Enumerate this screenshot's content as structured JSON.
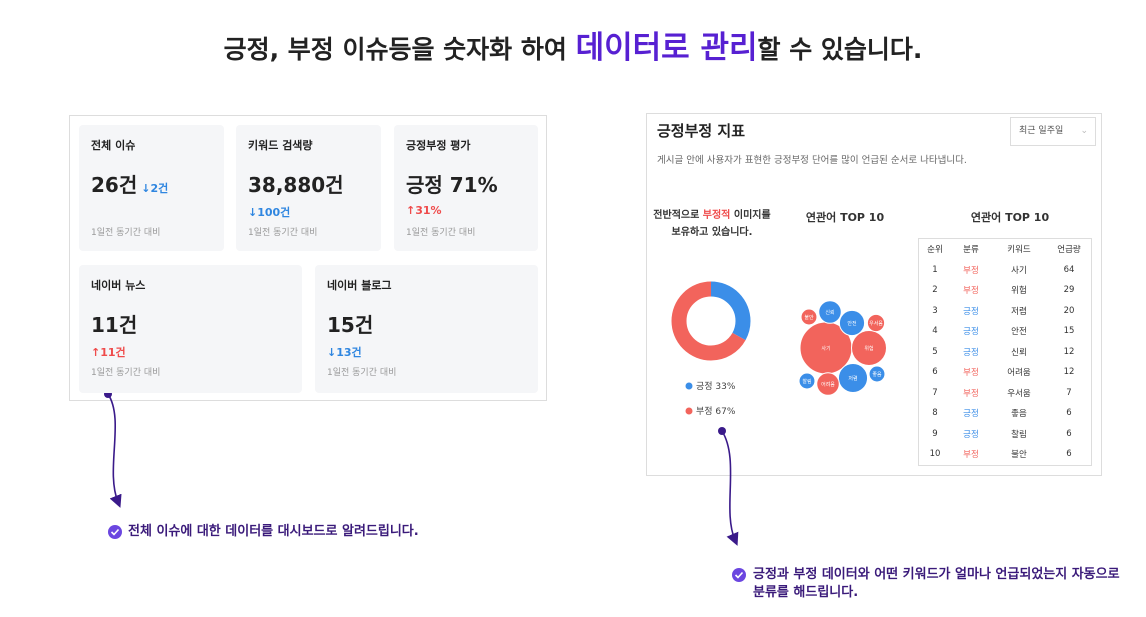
{
  "header": {
    "title_before": "긍정, 부정 이슈등을 숫자화 하여 ",
    "title_highlight": "데이터로 관리",
    "title_after": "할 수 있습니다."
  },
  "dashboard": {
    "cards": [
      {
        "label": "전체 이슈",
        "value": "26건",
        "change": "↓2건",
        "change_color": "#2f86e0",
        "note": "1일전 동기간 대비"
      },
      {
        "label": "키워드 검색량",
        "value": "38,880건",
        "change": "↓100건",
        "change_color": "#2f86e0",
        "note": "1일전 동기간 대비"
      },
      {
        "label": "긍정부정 평가",
        "value": "긍정 71%",
        "change": "↑31%",
        "change_color": "#ef4b4b",
        "note": "1일전 동기간 대비"
      },
      {
        "label": "네이버 뉴스",
        "value": "11건",
        "change": "↑11건",
        "change_color": "#ef4b4b",
        "note": "1일전 동기간 대비"
      },
      {
        "label": "네이버 블로그",
        "value": "15건",
        "change": "↓13건",
        "change_color": "#2f86e0",
        "note": "1일전 동기간 대비"
      }
    ]
  },
  "indicator": {
    "title": "긍정부정 지표",
    "dropdown": "최근 일주일",
    "description": "게시글 안에 사용자가 표현한 긍정부정 단어를 많이 언급된 순서로 나타냅니다.",
    "summary_before": "전반적으로 ",
    "summary_highlight": "부정적",
    "summary_after": " 이미지를 보유하고 있습니다.",
    "donut": [
      {
        "label": "긍정 33%",
        "value": 33,
        "color": "#3b8ee8"
      },
      {
        "label": "부정 67%",
        "value": 67,
        "color": "#f2645c"
      }
    ],
    "bubble_title": "연관어 TOP 10",
    "table_title": "연관어 TOP 10",
    "sentiment_colors": {
      "긍정": "#3b8ee8",
      "부정": "#f2645c"
    },
    "table": {
      "columns": [
        "순위",
        "분류",
        "키워드",
        "언급량"
      ],
      "rows": [
        [
          1,
          "부정",
          "사기",
          64
        ],
        [
          2,
          "부정",
          "위험",
          29
        ],
        [
          3,
          "긍정",
          "저렴",
          20
        ],
        [
          4,
          "긍정",
          "안전",
          15
        ],
        [
          5,
          "긍정",
          "신뢰",
          12
        ],
        [
          6,
          "부정",
          "어려움",
          12
        ],
        [
          7,
          "부정",
          "우서움",
          7
        ],
        [
          8,
          "긍정",
          "좋음",
          6
        ],
        [
          9,
          "긍정",
          "찰림",
          6
        ],
        [
          10,
          "부정",
          "불안",
          6
        ]
      ]
    }
  },
  "annotations": [
    "전체 이슈에 대한 데이터를 대시보드로 알려드립니다.",
    "긍정과 부정 데이터와 어떤 키워드가 얼마나 언급되었는지 자동으로 분류를 해드립니다."
  ]
}
